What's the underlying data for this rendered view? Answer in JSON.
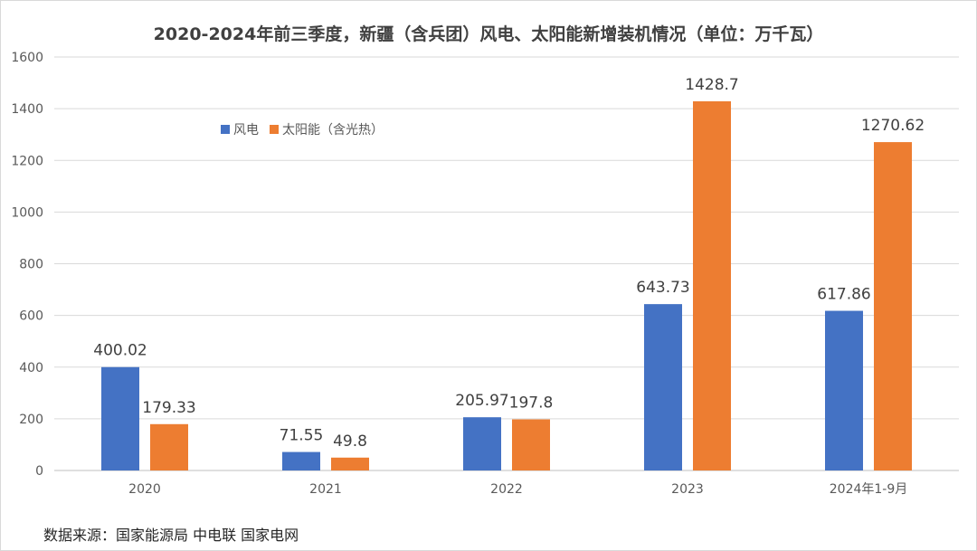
{
  "chart_data": {
    "type": "bar",
    "title": "2020-2024年前三季度，新疆（含兵团）风电、太阳能新增装机情况（单位：万千瓦）",
    "categories": [
      "2020",
      "2021",
      "2022",
      "2023",
      "2024年1-9月"
    ],
    "series": [
      {
        "name": "风电",
        "color": "#4472C4",
        "values": [
          400.02,
          71.55,
          205.97,
          643.73,
          617.86
        ],
        "labels": [
          "400.02",
          "71.55",
          "205.97",
          "643.73",
          "617.86"
        ]
      },
      {
        "name": "太阳能（含光热）",
        "color": "#ED7D31",
        "values": [
          179.33,
          49.8,
          197.8,
          1428.7,
          1270.62
        ],
        "labels": [
          "179.33",
          "49.8",
          "197.8",
          "1428.7",
          "1270.62"
        ]
      }
    ],
    "ylim": [
      0,
      1600
    ],
    "yticks": [
      0,
      200,
      400,
      600,
      800,
      1000,
      1200,
      1400,
      1600
    ],
    "grid": true,
    "legend": "top-left"
  },
  "source_note": "数据来源：国家能源局 中电联 国家电网"
}
